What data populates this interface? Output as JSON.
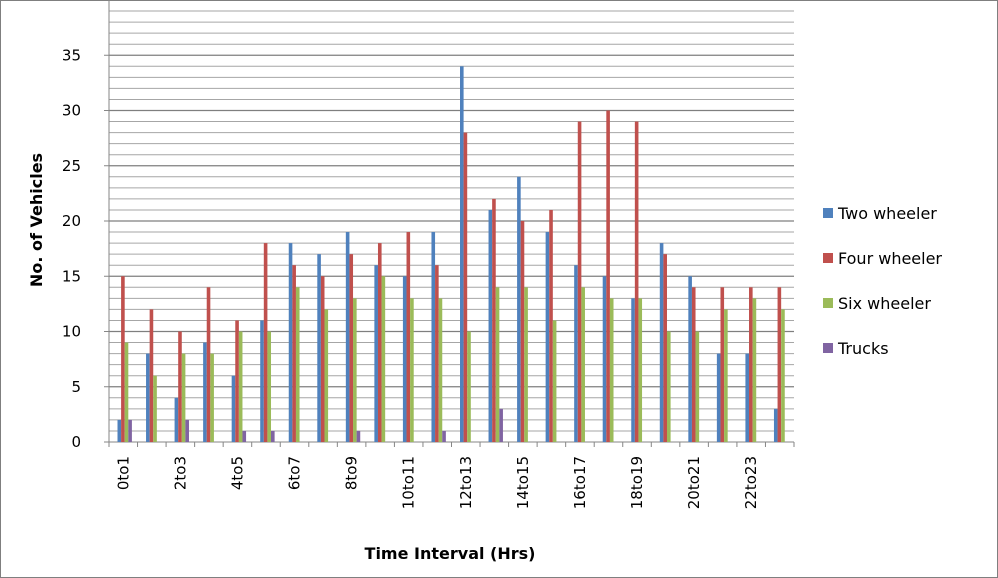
{
  "chart_data": {
    "type": "bar",
    "title": "",
    "xlabel": "Time Interval (Hrs)",
    "ylabel": "No. of Vehicles",
    "ylim": [
      0,
      40
    ],
    "ytick_step": 5,
    "ytick_labels": [
      "0",
      "5",
      "10",
      "15",
      "20",
      "25",
      "30",
      "35"
    ],
    "minor_grid_step": 1,
    "grid": true,
    "legend_position": "right",
    "categories": [
      "0to1",
      "1to2",
      "2to3",
      "3to4",
      "4to5",
      "5to6",
      "6to7",
      "7to8",
      "8to9",
      "9to10",
      "10to11",
      "11to12",
      "12to13",
      "13to14",
      "14to15",
      "15to16",
      "16to17",
      "17to18",
      "18to19",
      "19to20",
      "20to21",
      "21to22",
      "22to23",
      "23to24"
    ],
    "visible_x_labels": [
      "0to1",
      "2to3",
      "4to5",
      "6to7",
      "8to9",
      "10to11",
      "12to13",
      "14to15",
      "16to17",
      "18to19",
      "20to21",
      "22to23"
    ],
    "series": [
      {
        "name": "Two wheeler",
        "color": "#4f81bd",
        "values": [
          2,
          8,
          4,
          9,
          6,
          11,
          18,
          17,
          19,
          16,
          15,
          19,
          34,
          21,
          24,
          19,
          16,
          15,
          13,
          18,
          15,
          8,
          8,
          3
        ]
      },
      {
        "name": "Four wheeler",
        "color": "#c0504d",
        "values": [
          15,
          12,
          10,
          14,
          11,
          18,
          16,
          15,
          17,
          18,
          19,
          16,
          28,
          22,
          20,
          21,
          29,
          30,
          29,
          17,
          14,
          14,
          14,
          14
        ]
      },
      {
        "name": "Six wheeler",
        "color": "#9bbb59",
        "values": [
          9,
          6,
          8,
          8,
          10,
          10,
          14,
          12,
          13,
          15,
          13,
          13,
          10,
          14,
          14,
          11,
          14,
          13,
          13,
          10,
          10,
          12,
          13,
          12
        ]
      },
      {
        "name": "Trucks",
        "color": "#8064a2",
        "values": [
          2,
          0,
          2,
          0,
          1,
          1,
          0,
          0,
          1,
          0,
          0,
          1,
          0,
          3,
          0,
          0,
          0,
          0,
          0,
          0,
          0,
          0,
          0,
          0
        ]
      }
    ]
  }
}
